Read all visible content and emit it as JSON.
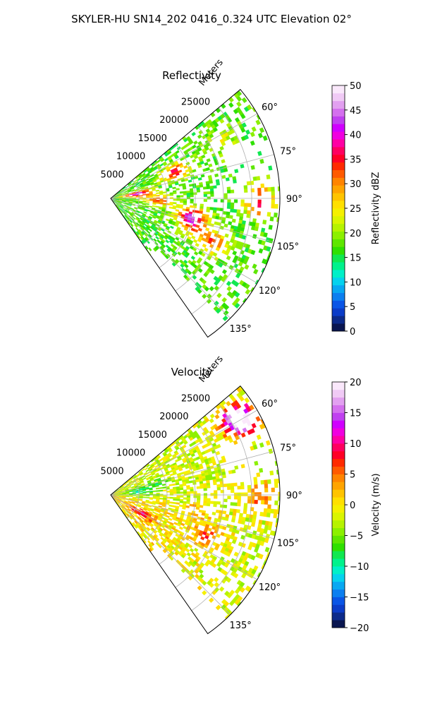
{
  "suptitle": "SKYLER-HU  SN14_202  0416_0.324 UTC Elevation 02°",
  "chart_data": [
    {
      "type": "heatmap",
      "projection": "polar-sector",
      "title": "Reflectivity",
      "radial_label": "Meters",
      "radial_ticks": [
        "5000",
        "10000",
        "15000",
        "20000",
        "25000"
      ],
      "radial_tick_values": [
        5000,
        10000,
        15000,
        20000,
        25000
      ],
      "radial_max": 30000,
      "theta_min_deg": 50,
      "theta_max_deg": 145,
      "theta_tick_values": [
        60,
        75,
        90,
        105,
        120,
        135
      ],
      "theta_ticks": [
        "60°",
        "75°",
        "90°",
        "105°",
        "120°",
        "135°"
      ],
      "grid": true,
      "colorbar": {
        "label": "Reflectivity dBZ",
        "ticks": [
          "0",
          "5",
          "10",
          "15",
          "20",
          "25",
          "30",
          "35",
          "40",
          "45",
          "50"
        ],
        "vmin": 0,
        "vmax": 50,
        "colors": [
          "#0a1650",
          "#0c2a8a",
          "#0b3cc8",
          "#0a55e6",
          "#0c7ff0",
          "#08a8f2",
          "#05d2ee",
          "#00f0c8",
          "#00f28c",
          "#10e850",
          "#2fe000",
          "#5ee600",
          "#8cf000",
          "#b6f300",
          "#daf500",
          "#f5f000",
          "#ffe000",
          "#ffc400",
          "#ffa400",
          "#ff8400",
          "#ff5a00",
          "#ff2a00",
          "#ff0026",
          "#ff0060",
          "#ff00a4",
          "#f000e0",
          "#d000ff",
          "#c040f0",
          "#d470ee",
          "#e2a0f0",
          "#f0caf5",
          "#fae8fb"
        ]
      },
      "echo_regions": [
        {
          "r_km": 4.5,
          "theta": 80,
          "value": 42
        },
        {
          "r_km": 12.0,
          "theta": 67,
          "value": 36
        },
        {
          "r_km": 8.0,
          "theta": 92,
          "value": 33
        },
        {
          "r_km": 14.5,
          "theta": 102,
          "value": 42
        },
        {
          "r_km": 19.5,
          "theta": 112,
          "value": 33
        },
        {
          "r_km": 26.0,
          "theta": 90,
          "value": 38
        },
        {
          "r_km": 22.0,
          "theta": 62,
          "value": 24
        },
        {
          "r_km": 15.0,
          "theta": 110,
          "value": 26
        }
      ]
    },
    {
      "type": "heatmap",
      "projection": "polar-sector",
      "title": "Velocity",
      "radial_label": "Meters",
      "radial_ticks": [
        "5000",
        "10000",
        "15000",
        "20000",
        "25000"
      ],
      "radial_tick_values": [
        5000,
        10000,
        15000,
        20000,
        25000
      ],
      "radial_max": 30000,
      "theta_min_deg": 50,
      "theta_max_deg": 145,
      "theta_tick_values": [
        60,
        75,
        90,
        105,
        120,
        135
      ],
      "theta_ticks": [
        "60°",
        "75°",
        "90°",
        "105°",
        "120°",
        "135°"
      ],
      "grid": true,
      "colorbar": {
        "label": "Velocity (m/s)",
        "ticks": [
          "−20",
          "−15",
          "−10",
          "−5",
          "0",
          "5",
          "10",
          "15",
          "20"
        ],
        "vmin": -20,
        "vmax": 20,
        "colors": [
          "#0a1650",
          "#0c2a8a",
          "#0b3cc8",
          "#0a55e6",
          "#0c7ff0",
          "#08a8f2",
          "#05d2ee",
          "#00f0c8",
          "#00f28c",
          "#10e850",
          "#2fe000",
          "#5ee600",
          "#8cf000",
          "#b6f300",
          "#daf500",
          "#f5f000",
          "#ffe000",
          "#ffc400",
          "#ffa400",
          "#ff8400",
          "#ff5a00",
          "#ff2a00",
          "#ff0026",
          "#ff0060",
          "#ff00a4",
          "#f000e0",
          "#d000ff",
          "#c040f0",
          "#d470ee",
          "#e2a0f0",
          "#f0caf5",
          "#fae8fb"
        ]
      },
      "echo_regions": [
        {
          "r_km": 25.0,
          "theta": 58,
          "value": 12
        },
        {
          "r_km": 27.0,
          "theta": 60,
          "value": 15
        },
        {
          "r_km": 8.0,
          "theta": 75,
          "value": -6
        },
        {
          "r_km": 5.0,
          "theta": 82,
          "value": -10
        },
        {
          "r_km": 6.0,
          "theta": 120,
          "value": 7
        },
        {
          "r_km": 18.0,
          "theta": 112,
          "value": 5
        },
        {
          "r_km": 26.0,
          "theta": 90,
          "value": 5
        },
        {
          "r_km": 15.0,
          "theta": 100,
          "value": 1
        }
      ]
    }
  ]
}
